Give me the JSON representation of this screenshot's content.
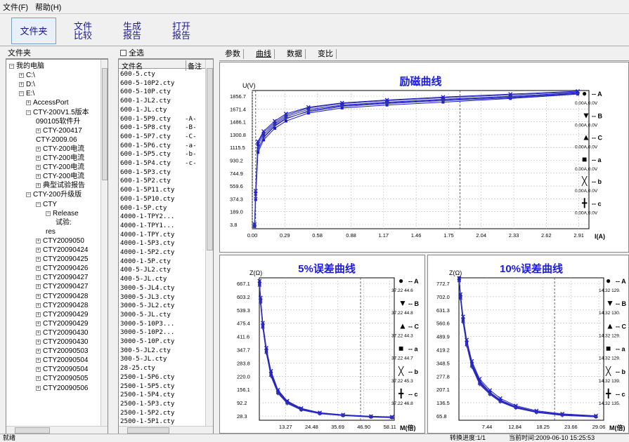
{
  "menu": {
    "file": "文件(F)",
    "help": "帮助(H)"
  },
  "toolbar": {
    "folder": "文件夹",
    "compare_1": "文件",
    "compare_2": "比较",
    "gen_1": "生成",
    "gen_2": "报告",
    "open_1": "打开",
    "open_2": "报告"
  },
  "tree": {
    "title": "文件夹",
    "items": [
      "我的电脑",
      "C:\\",
      "D:\\",
      "E:\\",
      "AccessPort",
      "CTY-200V1.5版本",
      "090105软件升",
      "CTY-200417",
      "CTY-2009.06",
      "CTY-200电流",
      "CTY-200电流",
      "CTY-200电流",
      "CTY-200电流",
      "典型试验报告",
      "CTY-200升级版",
      "CTY",
      "Release",
      "试验:",
      "res",
      "CTY2009050",
      "CTY20090424",
      "CTY20090425",
      "CTY20090426",
      "CTY20090427",
      "CTY20090427",
      "CTY20090428",
      "CTY20090428",
      "CTY20090429",
      "CTY20090429",
      "CTY20090430",
      "CTY20090430",
      "CTY20090503",
      "CTY20090504",
      "CTY20090504",
      "CTY20090505",
      "CTY20090506"
    ]
  },
  "files": {
    "select_all": "全选",
    "col_name": "文件名",
    "col_note": "备注",
    "rows": [
      {
        "name": "600-5.cty",
        "note": ""
      },
      {
        "name": "600-5-10P2.cty",
        "note": ""
      },
      {
        "name": "600-5-10P.cty",
        "note": ""
      },
      {
        "name": "600-1-JL2.cty",
        "note": ""
      },
      {
        "name": "600-1-JL.cty",
        "note": ""
      },
      {
        "name": "600-1-5P9.cty",
        "note": "-A-"
      },
      {
        "name": "600-1-5P8.cty",
        "note": "-B-"
      },
      {
        "name": "600-1-5P7.cty",
        "note": "-C-"
      },
      {
        "name": "600-1-5P6.cty",
        "note": "-a-"
      },
      {
        "name": "600-1-5P5.cty",
        "note": "-b-"
      },
      {
        "name": "600-1-5P4.cty",
        "note": "-c-"
      },
      {
        "name": "600-1-5P3.cty",
        "note": ""
      },
      {
        "name": "600-1-5P2.cty",
        "note": ""
      },
      {
        "name": "600-1-5P11.cty",
        "note": ""
      },
      {
        "name": "600-1-5P10.cty",
        "note": ""
      },
      {
        "name": "600-1-5P.cty",
        "note": ""
      },
      {
        "name": "4000-1-TPY2...",
        "note": ""
      },
      {
        "name": "4000-1-TPY1...",
        "note": ""
      },
      {
        "name": "4000-1-TPY.cty",
        "note": ""
      },
      {
        "name": "4000-1-5P3.cty",
        "note": ""
      },
      {
        "name": "4000-1-5P2.cty",
        "note": ""
      },
      {
        "name": "4000-1-5P.cty",
        "note": ""
      },
      {
        "name": "400-5-JL2.cty",
        "note": ""
      },
      {
        "name": "400-5-JL.cty",
        "note": ""
      },
      {
        "name": "3000-5-JL4.cty",
        "note": ""
      },
      {
        "name": "3000-5-JL3.cty",
        "note": ""
      },
      {
        "name": "3000-5-JL2.cty",
        "note": ""
      },
      {
        "name": "3000-5-JL.cty",
        "note": ""
      },
      {
        "name": "3000-5-10P3...",
        "note": ""
      },
      {
        "name": "3000-5-10P2...",
        "note": ""
      },
      {
        "name": "3000-5-10P.cty",
        "note": ""
      },
      {
        "name": "300-5-JL2.cty",
        "note": ""
      },
      {
        "name": "300-5-JL.cty",
        "note": ""
      },
      {
        "name": "28-25.cty",
        "note": ""
      },
      {
        "name": "2500-1-5P6.cty",
        "note": ""
      },
      {
        "name": "2500-1-5P5.cty",
        "note": ""
      },
      {
        "name": "2500-1-5P4.cty",
        "note": ""
      },
      {
        "name": "2500-1-5P3.cty",
        "note": ""
      },
      {
        "name": "2500-1-5P2.cty",
        "note": ""
      },
      {
        "name": "2500-1-5P1.cty",
        "note": ""
      }
    ]
  },
  "tabs": [
    "参数",
    "曲线",
    "数据",
    "变比"
  ],
  "status": {
    "ready": "就绪",
    "progress": "转换进度:1/1",
    "time": "当前时间:2009-06-10 15:25:53"
  },
  "legend_symbols": {
    "A": "●",
    "B": "▼",
    "C": "▲",
    "a": "■",
    "b": "╳",
    "c": "╋",
    "labels": [
      "-- A",
      "-- B",
      "-- C",
      "-- a",
      "-- b",
      "-- c"
    ]
  },
  "chart_data": [
    {
      "type": "line",
      "title": "励磁曲线",
      "ylabel": "U(V)",
      "xlabel": "I(A)",
      "xlim": [
        0,
        3.0
      ],
      "ylim": [
        0,
        1900
      ],
      "xticks": [
        "0.00",
        "0.29",
        "0.58",
        "0.88",
        "1.17",
        "1.46",
        "1.75",
        "2.04",
        "2.33",
        "2.62",
        "2.91"
      ],
      "yticks": [
        "1856.7",
        "1671.4",
        "1486.1",
        "1300.8",
        "1115.5",
        "930.2",
        "744.9",
        "559.6",
        "374.3",
        "189.0",
        "3.8"
      ],
      "legend_values": [
        "0.00A,0.0V",
        "0.00A,0.0V",
        "0.00A,0.0V",
        "0.00A,0.0V",
        "0.00A,0.0V",
        "0.00A,0.0V"
      ],
      "series": [
        {
          "name": "A",
          "color": "#1f1fd0",
          "x": [
            0.02,
            0.03,
            0.05,
            0.1,
            0.2,
            0.3,
            0.5,
            0.8,
            1.2,
            1.7,
            2.3,
            2.9
          ],
          "y": [
            50,
            500,
            1150,
            1290,
            1440,
            1540,
            1640,
            1700,
            1740,
            1780,
            1820,
            1870
          ]
        },
        {
          "name": "B",
          "color": "#2a2ab8",
          "x": [
            0.02,
            0.03,
            0.05,
            0.1,
            0.2,
            0.3,
            0.5,
            0.8,
            1.2,
            1.7,
            2.3,
            2.9
          ],
          "y": [
            40,
            450,
            1100,
            1250,
            1410,
            1510,
            1620,
            1690,
            1730,
            1770,
            1810,
            1860
          ]
        },
        {
          "name": "C",
          "color": "#3030a8",
          "x": [
            0.02,
            0.03,
            0.05,
            0.1,
            0.2,
            0.3,
            0.5,
            0.8,
            1.2,
            1.7,
            2.3,
            2.9
          ],
          "y": [
            45,
            480,
            1180,
            1320,
            1460,
            1560,
            1660,
            1720,
            1760,
            1800,
            1840,
            1880
          ]
        },
        {
          "name": "a",
          "color": "#1515e0",
          "x": [
            0.02,
            0.03,
            0.05,
            0.1,
            0.2,
            0.3,
            0.5,
            0.8,
            1.2,
            1.7,
            2.3,
            2.9
          ],
          "y": [
            30,
            400,
            1050,
            1220,
            1380,
            1480,
            1590,
            1660,
            1700,
            1740,
            1790,
            1850
          ]
        },
        {
          "name": "b",
          "color": "#2020c8",
          "x": [
            0.02,
            0.03,
            0.05,
            0.1,
            0.2,
            0.3,
            0.5,
            0.8,
            1.2,
            1.7,
            2.3,
            2.9
          ],
          "y": [
            60,
            520,
            1200,
            1340,
            1480,
            1580,
            1670,
            1730,
            1770,
            1810,
            1850,
            1890
          ]
        },
        {
          "name": "c",
          "color": "#3535b0",
          "x": [
            0.02,
            0.03,
            0.05,
            0.1,
            0.2,
            0.3,
            0.5,
            0.8,
            1.2,
            1.7,
            2.3,
            2.9
          ],
          "y": [
            35,
            430,
            1080,
            1260,
            1420,
            1520,
            1610,
            1680,
            1720,
            1760,
            1800,
            1855
          ]
        }
      ]
    },
    {
      "type": "line",
      "title": "5%误差曲线",
      "ylabel": "Z(Ω)",
      "xlabel": "M(倍)",
      "xlim": [
        2,
        60
      ],
      "ylim": [
        20,
        700
      ],
      "xticks": [
        "13.27",
        "24.48",
        "35.69",
        "46.90",
        "58.11"
      ],
      "yticks": [
        "667.1",
        "603.2",
        "539.3",
        "475.4",
        "411.6",
        "347.7",
        "283.8",
        "220.0",
        "156.1",
        "92.2",
        "28.3"
      ],
      "legend_values": [
        "37.22 44.6",
        "37.22 44.8",
        "37.22 44.3",
        "37.22 44.7",
        "37.22 45.3",
        "37.22 46.8"
      ],
      "series": [
        {
          "name": "A",
          "color": "#1f1fd0",
          "x": [
            2.1,
            2.5,
            3.5,
            5,
            7,
            10,
            14,
            20,
            28,
            38,
            50,
            59
          ],
          "y": [
            680,
            600,
            480,
            360,
            250,
            160,
            110,
            75,
            55,
            45,
            38,
            35
          ]
        },
        {
          "name": "B",
          "color": "#2a2ab8",
          "x": [
            2.1,
            2.5,
            3.5,
            5,
            7,
            10,
            14,
            20,
            28,
            38,
            50,
            59
          ],
          "y": [
            670,
            590,
            470,
            350,
            240,
            155,
            105,
            72,
            53,
            44,
            37,
            34
          ]
        },
        {
          "name": "C",
          "color": "#3030a8",
          "x": [
            2.1,
            2.5,
            3.5,
            5,
            7,
            10,
            14,
            20,
            28,
            38,
            50,
            59
          ],
          "y": [
            675,
            595,
            475,
            355,
            245,
            158,
            108,
            74,
            54,
            45,
            38,
            35
          ]
        },
        {
          "name": "a",
          "color": "#1515e0",
          "x": [
            2.1,
            2.5,
            3.5,
            5,
            7,
            10,
            14,
            20,
            28,
            38,
            50,
            59
          ],
          "y": [
            665,
            585,
            465,
            345,
            235,
            150,
            102,
            70,
            52,
            43,
            36,
            33
          ]
        },
        {
          "name": "b",
          "color": "#2020c8",
          "x": [
            2.1,
            2.5,
            3.5,
            5,
            7,
            10,
            14,
            20,
            28,
            38,
            50,
            59
          ],
          "y": [
            685,
            605,
            485,
            365,
            255,
            165,
            112,
            77,
            56,
            46,
            39,
            36
          ]
        },
        {
          "name": "c",
          "color": "#3535b0",
          "x": [
            2.1,
            2.5,
            3.5,
            5,
            7,
            10,
            14,
            20,
            28,
            38,
            50,
            59
          ],
          "y": [
            660,
            580,
            460,
            340,
            230,
            148,
            100,
            69,
            51,
            42,
            35,
            32
          ]
        }
      ]
    },
    {
      "type": "line",
      "title": "10%误差曲线",
      "ylabel": "Z(Ω)",
      "xlabel": "M(倍)",
      "xlim": [
        2,
        30
      ],
      "ylim": [
        55,
        790
      ],
      "xticks": [
        "7.44",
        "12.84",
        "18.25",
        "23.66",
        "29.06"
      ],
      "yticks": [
        "772.7",
        "702.0",
        "631.3",
        "560.6",
        "489.9",
        "419.2",
        "348.5",
        "277.8",
        "207.1",
        "136.5",
        "65.8"
      ],
      "legend_values": [
        "14.32 129.",
        "14.32 130.",
        "14.32 129.",
        "14.32 129.",
        "14.32 139.",
        "14.32 135."
      ],
      "series": [
        {
          "name": "A",
          "color": "#1f1fd0",
          "x": [
            2.05,
            2.3,
            2.8,
            3.5,
            4.5,
            6,
            8,
            10,
            13,
            17,
            22,
            28.5
          ],
          "y": [
            790,
            700,
            580,
            460,
            350,
            260,
            200,
            160,
            125,
            100,
            85,
            75
          ]
        },
        {
          "name": "B",
          "color": "#2a2ab8",
          "x": [
            2.05,
            2.3,
            2.8,
            3.5,
            4.5,
            6,
            8,
            10,
            13,
            17,
            22,
            28.5
          ],
          "y": [
            780,
            690,
            570,
            450,
            340,
            250,
            195,
            155,
            122,
            98,
            83,
            74
          ]
        },
        {
          "name": "C",
          "color": "#3030a8",
          "x": [
            2.05,
            2.3,
            2.8,
            3.5,
            4.5,
            6,
            8,
            10,
            13,
            17,
            22,
            28.5
          ],
          "y": [
            785,
            695,
            575,
            455,
            345,
            255,
            198,
            158,
            124,
            99,
            84,
            74
          ]
        },
        {
          "name": "a",
          "color": "#1515e0",
          "x": [
            2.05,
            2.3,
            2.8,
            3.5,
            4.5,
            6,
            8,
            10,
            13,
            17,
            22,
            28.5
          ],
          "y": [
            775,
            685,
            565,
            445,
            335,
            245,
            190,
            152,
            120,
            96,
            82,
            73
          ]
        },
        {
          "name": "b",
          "color": "#2020c8",
          "x": [
            2.05,
            2.3,
            2.8,
            3.5,
            4.5,
            6,
            8,
            10,
            13,
            17,
            22,
            28.5
          ],
          "y": [
            788,
            705,
            590,
            470,
            360,
            268,
            210,
            168,
            130,
            104,
            88,
            78
          ]
        },
        {
          "name": "c",
          "color": "#3535b0",
          "x": [
            2.05,
            2.3,
            2.8,
            3.5,
            4.5,
            6,
            8,
            10,
            13,
            17,
            22,
            28.5
          ],
          "y": [
            770,
            680,
            560,
            440,
            330,
            240,
            188,
            150,
            118,
            95,
            80,
            72
          ]
        }
      ]
    }
  ]
}
